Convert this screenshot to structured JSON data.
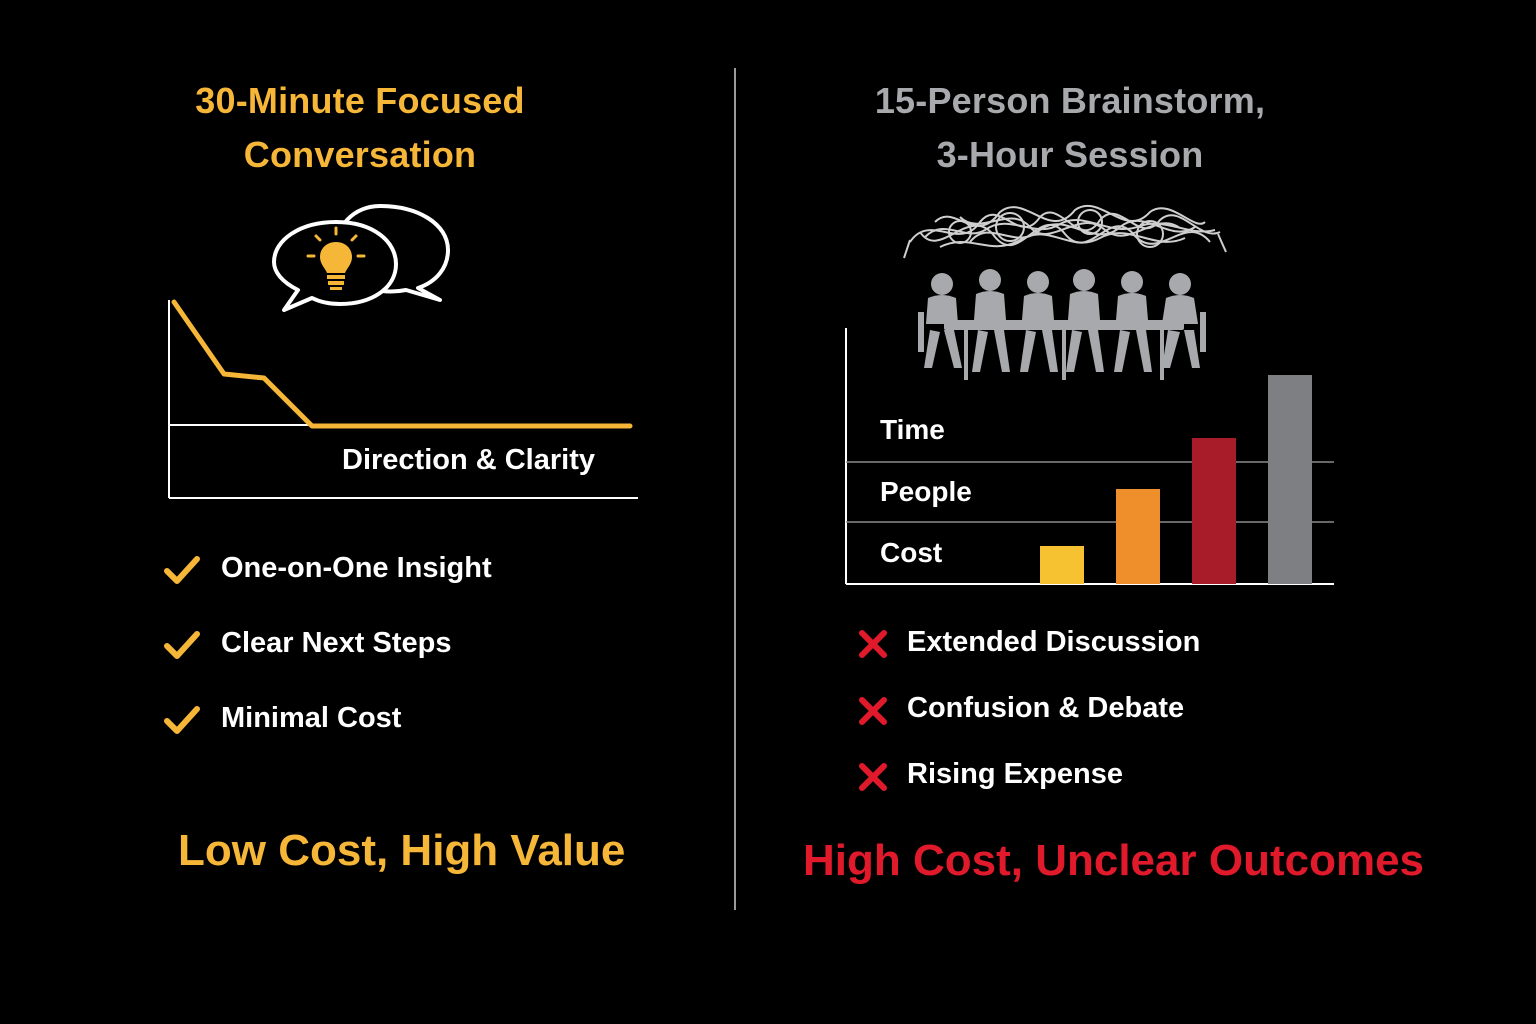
{
  "left_panel": {
    "title_line1": "30-Minute Focused",
    "title_line2": "Conversation",
    "chart_label": "Direction & Clarity",
    "checklist": [
      {
        "label": "One-on-One Insight",
        "icon": "check-icon"
      },
      {
        "label": "Clear Next Steps",
        "icon": "check-icon"
      },
      {
        "label": "Minimal Cost",
        "icon": "check-icon"
      }
    ],
    "summary": "Low Cost, High Value",
    "accent_color": "#f6b637"
  },
  "right_panel": {
    "title_line1": "15-Person Brainstorm,",
    "title_line2": "3-Hour Session",
    "bar_labels": [
      "Time",
      "People",
      "Cost"
    ],
    "bar_colors": [
      "#f7c232",
      "#ef8f2b",
      "#a81b28",
      "#7d7f82"
    ],
    "cons_list": [
      {
        "label": "Extended Discussion",
        "icon": "x-icon"
      },
      {
        "label": "Confusion & Debate",
        "icon": "x-icon"
      },
      {
        "label": "Rising Expense",
        "icon": "x-icon"
      }
    ],
    "summary": "High Cost, Unclear Outcomes",
    "accent_color": "#e01a2b"
  }
}
